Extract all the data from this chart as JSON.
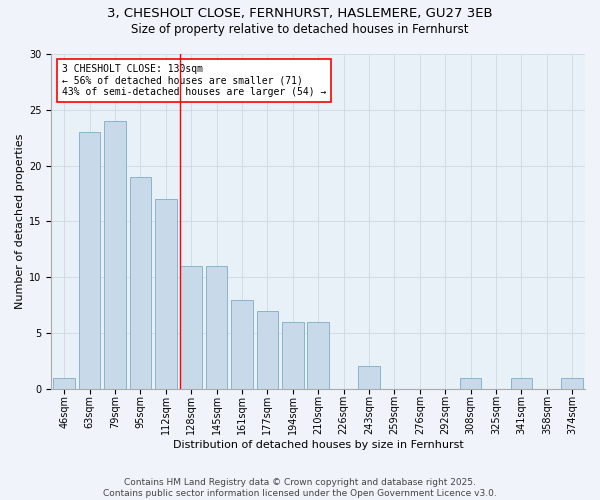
{
  "title": "3, CHESHOLT CLOSE, FERNHURST, HASLEMERE, GU27 3EB",
  "subtitle": "Size of property relative to detached houses in Fernhurst",
  "xlabel": "Distribution of detached houses by size in Fernhurst",
  "ylabel": "Number of detached properties",
  "bar_labels": [
    "46sqm",
    "63sqm",
    "79sqm",
    "95sqm",
    "112sqm",
    "128sqm",
    "145sqm",
    "161sqm",
    "177sqm",
    "194sqm",
    "210sqm",
    "226sqm",
    "243sqm",
    "259sqm",
    "276sqm",
    "292sqm",
    "308sqm",
    "325sqm",
    "341sqm",
    "358sqm",
    "374sqm"
  ],
  "bar_values": [
    1,
    23,
    24,
    19,
    17,
    11,
    11,
    8,
    7,
    6,
    6,
    0,
    2,
    0,
    0,
    0,
    1,
    0,
    1,
    0,
    1
  ],
  "bar_color": "#c8daea",
  "bar_edge_color": "#8ab4cc",
  "vline_x_index": 5,
  "vline_color": "red",
  "annotation_text": "3 CHESHOLT CLOSE: 130sqm\n← 56% of detached houses are smaller (71)\n43% of semi-detached houses are larger (54) →",
  "annotation_box_color": "white",
  "annotation_edge_color": "red",
  "ylim": [
    0,
    30
  ],
  "yticks": [
    0,
    5,
    10,
    15,
    20,
    25,
    30
  ],
  "grid_color": "#d0d8e0",
  "background_color": "#e8f0f8",
  "fig_background_color": "#f0f4fa",
  "footer": "Contains HM Land Registry data © Crown copyright and database right 2025.\nContains public sector information licensed under the Open Government Licence v3.0.",
  "title_fontsize": 9.5,
  "subtitle_fontsize": 8.5,
  "xlabel_fontsize": 8,
  "ylabel_fontsize": 8,
  "tick_fontsize": 7,
  "annot_fontsize": 7,
  "footer_fontsize": 6.5
}
